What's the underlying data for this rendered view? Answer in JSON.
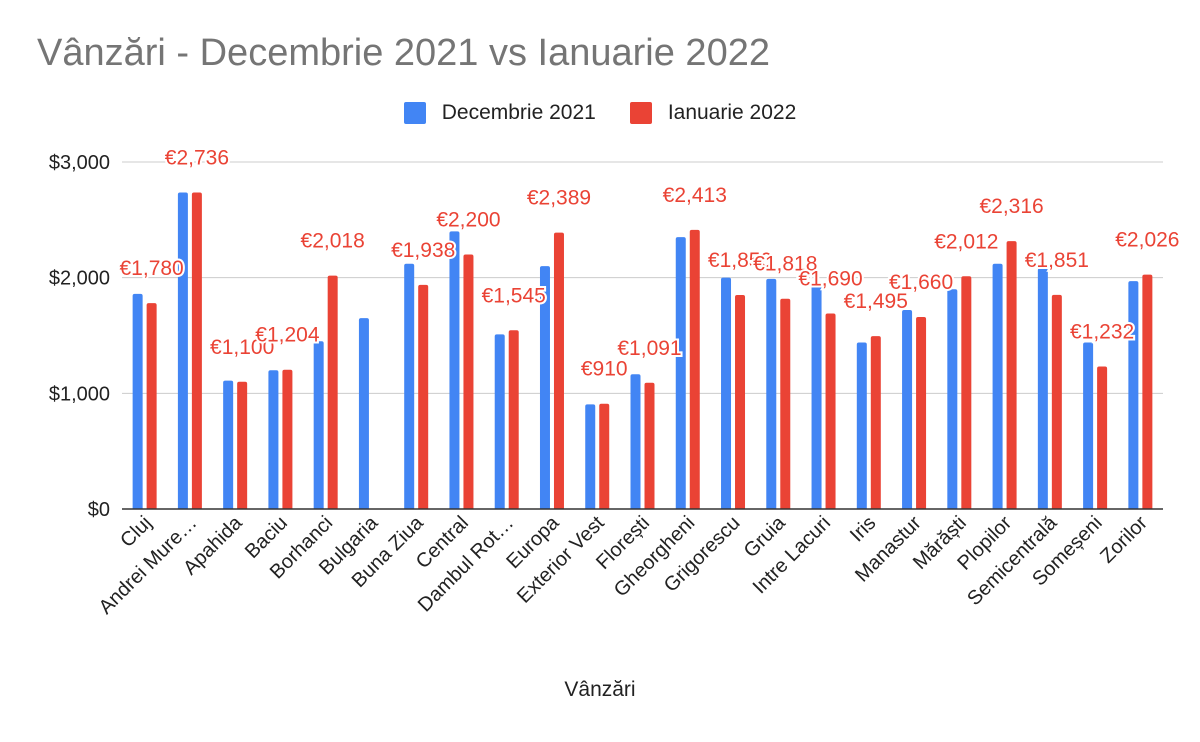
{
  "chart_data": {
    "type": "bar",
    "title": "Vânzări - Decembrie 2021 vs Ianuarie 2022",
    "xlabel": "Vânzări",
    "ylabel": "",
    "ylim": [
      0,
      3000
    ],
    "yticks": [
      {
        "value": 0,
        "label": "$0"
      },
      {
        "value": 1000,
        "label": "$1,000"
      },
      {
        "value": 2000,
        "label": "$2,000"
      },
      {
        "value": 3000,
        "label": "$3,000"
      }
    ],
    "grid": true,
    "legend_position": "top",
    "categories": [
      "Cluj",
      "Andrei Mure…",
      "Apahida",
      "Baciu",
      "Borhanci",
      "Bulgaria",
      "Buna Ziua",
      "Central",
      "Dambul Rot…",
      "Europa",
      "Exterior Vest",
      "Florești",
      "Gheorgheni",
      "Grigorescu",
      "Gruia",
      "Intre Lacuri",
      "Iris",
      "Manastur",
      "Mărăști",
      "Plopilor",
      "Semicentrală",
      "Someșeni",
      "Zorilor"
    ],
    "series": [
      {
        "name": "Decembrie 2021",
        "color": "#4285f4",
        "values": [
          1860,
          2736,
          1110,
          1200,
          1450,
          1650,
          2120,
          2400,
          1510,
          2100,
          905,
          1165,
          2350,
          2000,
          1990,
          1930,
          1440,
          1720,
          1900,
          2120,
          2080,
          1440,
          1970
        ],
        "labels": [
          "",
          "",
          "",
          "",
          "",
          "",
          "",
          "",
          "",
          "",
          "",
          "",
          "",
          "",
          "",
          "",
          "",
          "",
          "",
          "",
          "",
          "",
          ""
        ]
      },
      {
        "name": "Ianuarie 2022",
        "color": "#ea4335",
        "values": [
          1780,
          2736,
          1100,
          1204,
          2018,
          null,
          1938,
          2200,
          1545,
          2389,
          910,
          1091,
          2413,
          1850,
          1818,
          1690,
          1495,
          1660,
          2012,
          2316,
          1851,
          1232,
          2026
        ],
        "labels": [
          "€1,780",
          "€2,736",
          "€1,100",
          "€1,204",
          "€2,018",
          "",
          "€1,938",
          "€2,200",
          "€1,545",
          "€2,389",
          "€910",
          "€1,091",
          "€2,413",
          "€1,850",
          "€1,818",
          "€1,690",
          "€1,495",
          "€1,660",
          "€2,012",
          "€2,316",
          "€1,851",
          "€1,232",
          "€2,026"
        ]
      }
    ]
  }
}
